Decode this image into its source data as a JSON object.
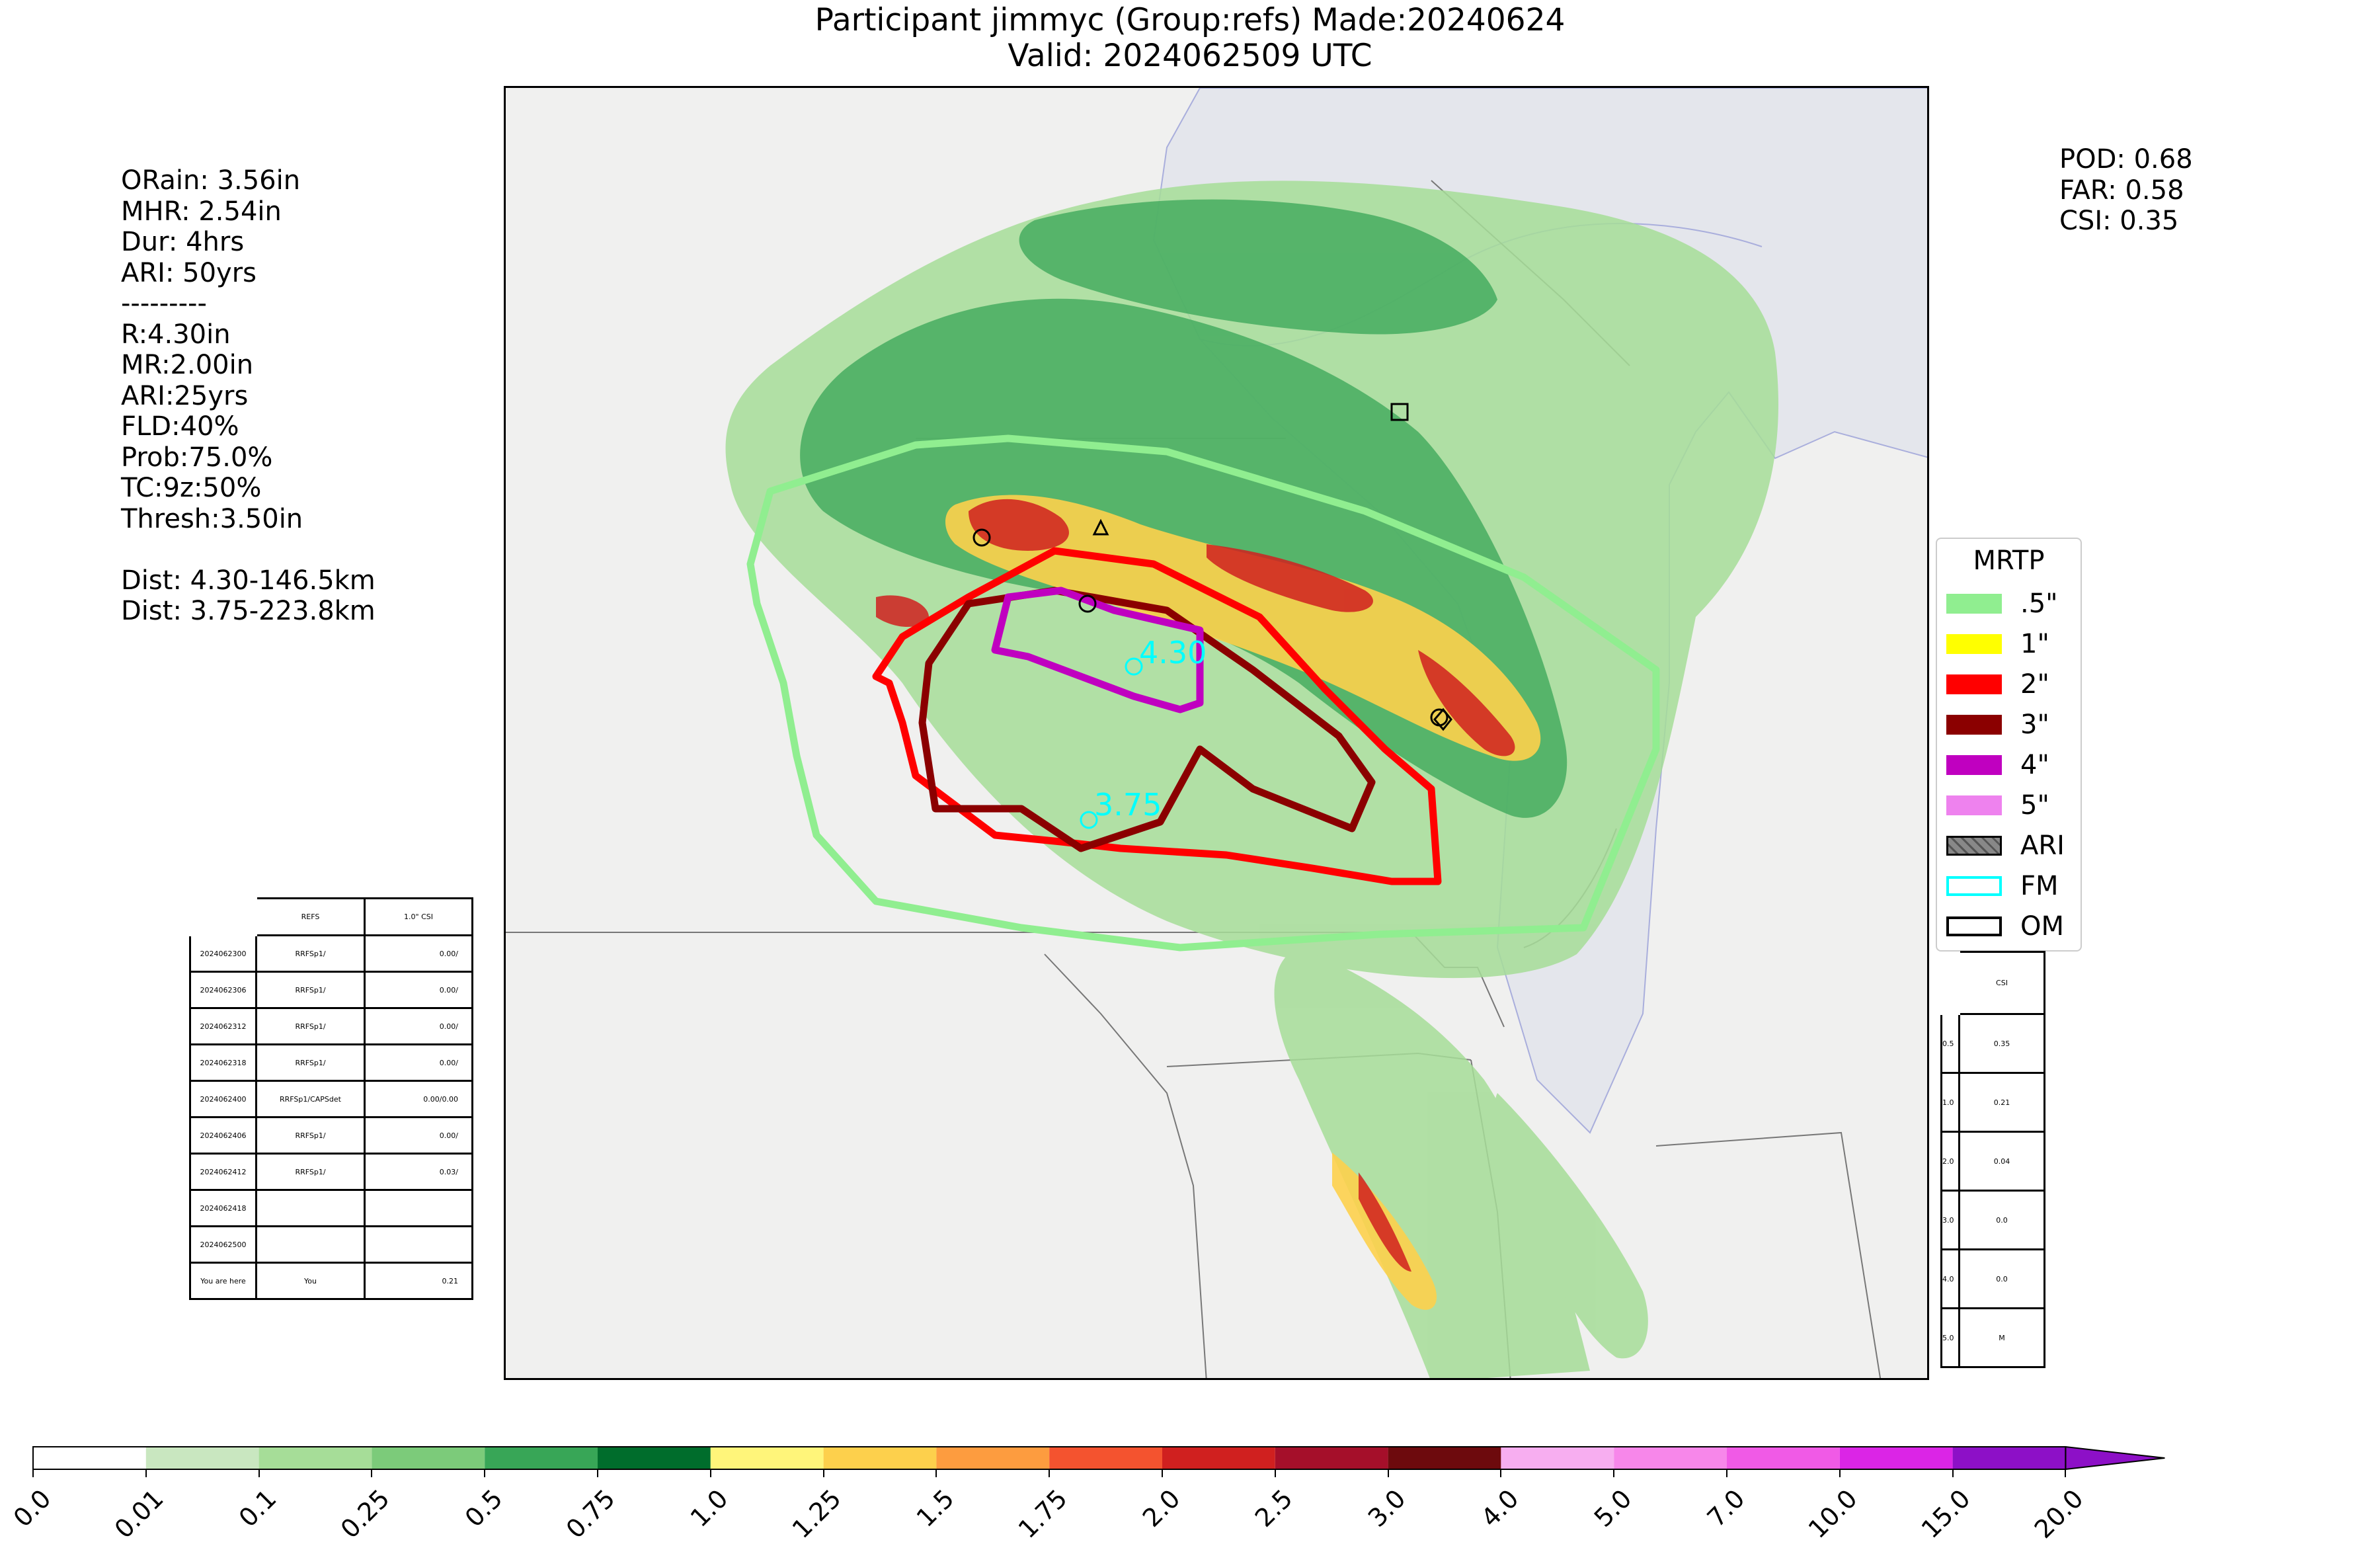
{
  "header": {
    "line1": "Participant jimmyc (Group:refs) Made:20240624",
    "line2": "Valid: 2024062509 UTC"
  },
  "stats_left": [
    "ORain: 3.56in",
    "MHR: 2.54in",
    "Dur: 4hrs",
    "ARI: 50yrs",
    "---------",
    "R:4.30in",
    "MR:2.00in",
    "ARI:25yrs",
    "FLD:40%",
    "Prob:75.0%",
    "TC:9z:50%",
    "Thresh:3.50in",
    "",
    "Dist: 4.30-146.5km",
    "Dist: 3.75-223.8km"
  ],
  "stats_right": [
    "POD: 0.68",
    "FAR: 0.58",
    "CSI: 0.35"
  ],
  "map_labels": {
    "fm_label_1": "4.30",
    "fm_label_2": "3.75"
  },
  "legend": {
    "title": "MRTP",
    "items": [
      {
        "label": ".5\"",
        "color": "#90ee90",
        "kind": "fill"
      },
      {
        "label": "1\"",
        "color": "#ffff00",
        "kind": "fill"
      },
      {
        "label": "2\"",
        "color": "#ff0000",
        "kind": "fill"
      },
      {
        "label": "3\"",
        "color": "#8b0000",
        "kind": "fill"
      },
      {
        "label": "4\"",
        "color": "#c000c0",
        "kind": "fill"
      },
      {
        "label": "5\"",
        "color": "#ee82ee",
        "kind": "fill"
      },
      {
        "label": "ARI",
        "color": "#888888",
        "kind": "hatch"
      },
      {
        "label": "FM",
        "color": "#00ffff",
        "kind": "outline"
      },
      {
        "label": "OM",
        "color": "#000000",
        "kind": "outline"
      }
    ]
  },
  "run_table": {
    "headers": [
      "",
      "REFS",
      "1.0\" CSI"
    ],
    "rows": [
      [
        "2024062300",
        "RRFSp1/",
        "0.00/"
      ],
      [
        "2024062306",
        "RRFSp1/",
        "0.00/"
      ],
      [
        "2024062312",
        "RRFSp1/",
        "0.00/"
      ],
      [
        "2024062318",
        "RRFSp1/",
        "0.00/"
      ],
      [
        "2024062400",
        "RRFSp1/CAPSdet",
        "0.00/0.00"
      ],
      [
        "2024062406",
        "RRFSp1/",
        "0.00/"
      ],
      [
        "2024062412",
        "RRFSp1/",
        "0.03/"
      ],
      [
        "2024062418",
        "",
        ""
      ],
      [
        "2024062500",
        "",
        ""
      ],
      [
        "You are here",
        "You",
        "0.21"
      ]
    ]
  },
  "csi_table": {
    "header": "CSI",
    "rows": [
      [
        "0.5",
        "0.35"
      ],
      [
        "1.0",
        "0.21"
      ],
      [
        "2.0",
        "0.04"
      ],
      [
        "3.0",
        "0.0"
      ],
      [
        "4.0",
        "0.0"
      ],
      [
        "5.0",
        "M"
      ]
    ]
  },
  "colorbar": {
    "ticks": [
      "0.0",
      "0.01",
      "0.1",
      "0.25",
      "0.5",
      "0.75",
      "1.0",
      "1.25",
      "1.5",
      "1.75",
      "2.0",
      "2.5",
      "3.0",
      "4.0",
      "5.0",
      "7.0",
      "10.0",
      "15.0",
      "20.0"
    ],
    "colors": [
      "#ffffff",
      "#c9e7c0",
      "#a6dd98",
      "#7ccb7a",
      "#38a657",
      "#006d2c",
      "#fff57a",
      "#fdd04c",
      "#fd9c3f",
      "#f4532f",
      "#d0201f",
      "#a50f2a",
      "#6d0a0d",
      "#f7aef0",
      "#f787ea",
      "#f05ae6",
      "#db25e6",
      "#8d10c7"
    ]
  }
}
